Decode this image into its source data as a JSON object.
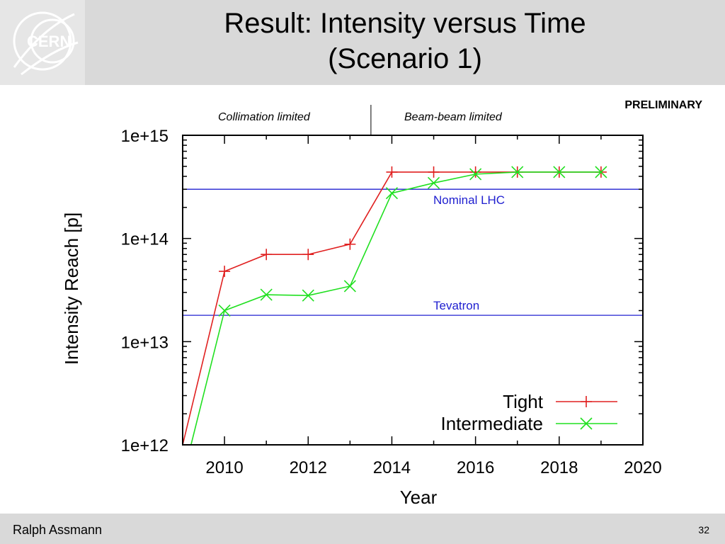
{
  "slide": {
    "title_line1": "Result: Intensity versus Time",
    "title_line2": "(Scenario 1)",
    "logo_text": "CERN",
    "preliminary": "PRELIMINARY",
    "region_left": "Collimation limited",
    "region_right": "Beam-beam limited",
    "footer_author": "Ralph Assmann",
    "page_number": "32"
  },
  "chart_data": {
    "type": "line",
    "title": "",
    "xlabel": "Year",
    "ylabel": "Intensity Reach [p]",
    "xlim": [
      2009,
      2020
    ],
    "ylim": [
      1000000000000.0,
      1000000000000000.0
    ],
    "yscale": "log",
    "x_ticks": [
      2010,
      2012,
      2014,
      2016,
      2018,
      2020
    ],
    "y_ticks": [
      {
        "value": 1000000000000.0,
        "label": "1e+12"
      },
      {
        "value": 10000000000000.0,
        "label": "1e+13"
      },
      {
        "value": 100000000000000.0,
        "label": "1e+14"
      },
      {
        "value": 1000000000000000.0,
        "label": "1e+15"
      }
    ],
    "regime_split_x": 2013.5,
    "reference_lines": [
      {
        "name": "Nominal LHC",
        "y": 300000000000000.0,
        "color": "#2020d0"
      },
      {
        "name": "Tevatron",
        "y": 18000000000000.0,
        "color": "#2020d0"
      }
    ],
    "series": [
      {
        "name": "Tight",
        "color": "#e02020",
        "marker": "plus",
        "x": [
          2009,
          2010,
          2011,
          2012,
          2013,
          2014,
          2015,
          2016,
          2017,
          2018,
          2019
        ],
        "y": [
          1000000000000.0,
          48000000000000.0,
          70000000000000.0,
          70000000000000.0,
          88000000000000.0,
          440000000000000.0,
          440000000000000.0,
          440000000000000.0,
          440000000000000.0,
          440000000000000.0,
          440000000000000.0
        ]
      },
      {
        "name": "Intermediate",
        "color": "#20e020",
        "marker": "cross",
        "x": [
          2009.2,
          2010,
          2011,
          2012,
          2013,
          2014,
          2015,
          2016,
          2017,
          2018,
          2019
        ],
        "y": [
          1000000000000.0,
          20000000000000.0,
          28500000000000.0,
          28000000000000.0,
          34500000000000.0,
          275000000000000.0,
          345000000000000.0,
          420000000000000.0,
          440000000000000.0,
          440000000000000.0,
          440000000000000.0
        ]
      }
    ],
    "legend_position": "bottom-right"
  }
}
